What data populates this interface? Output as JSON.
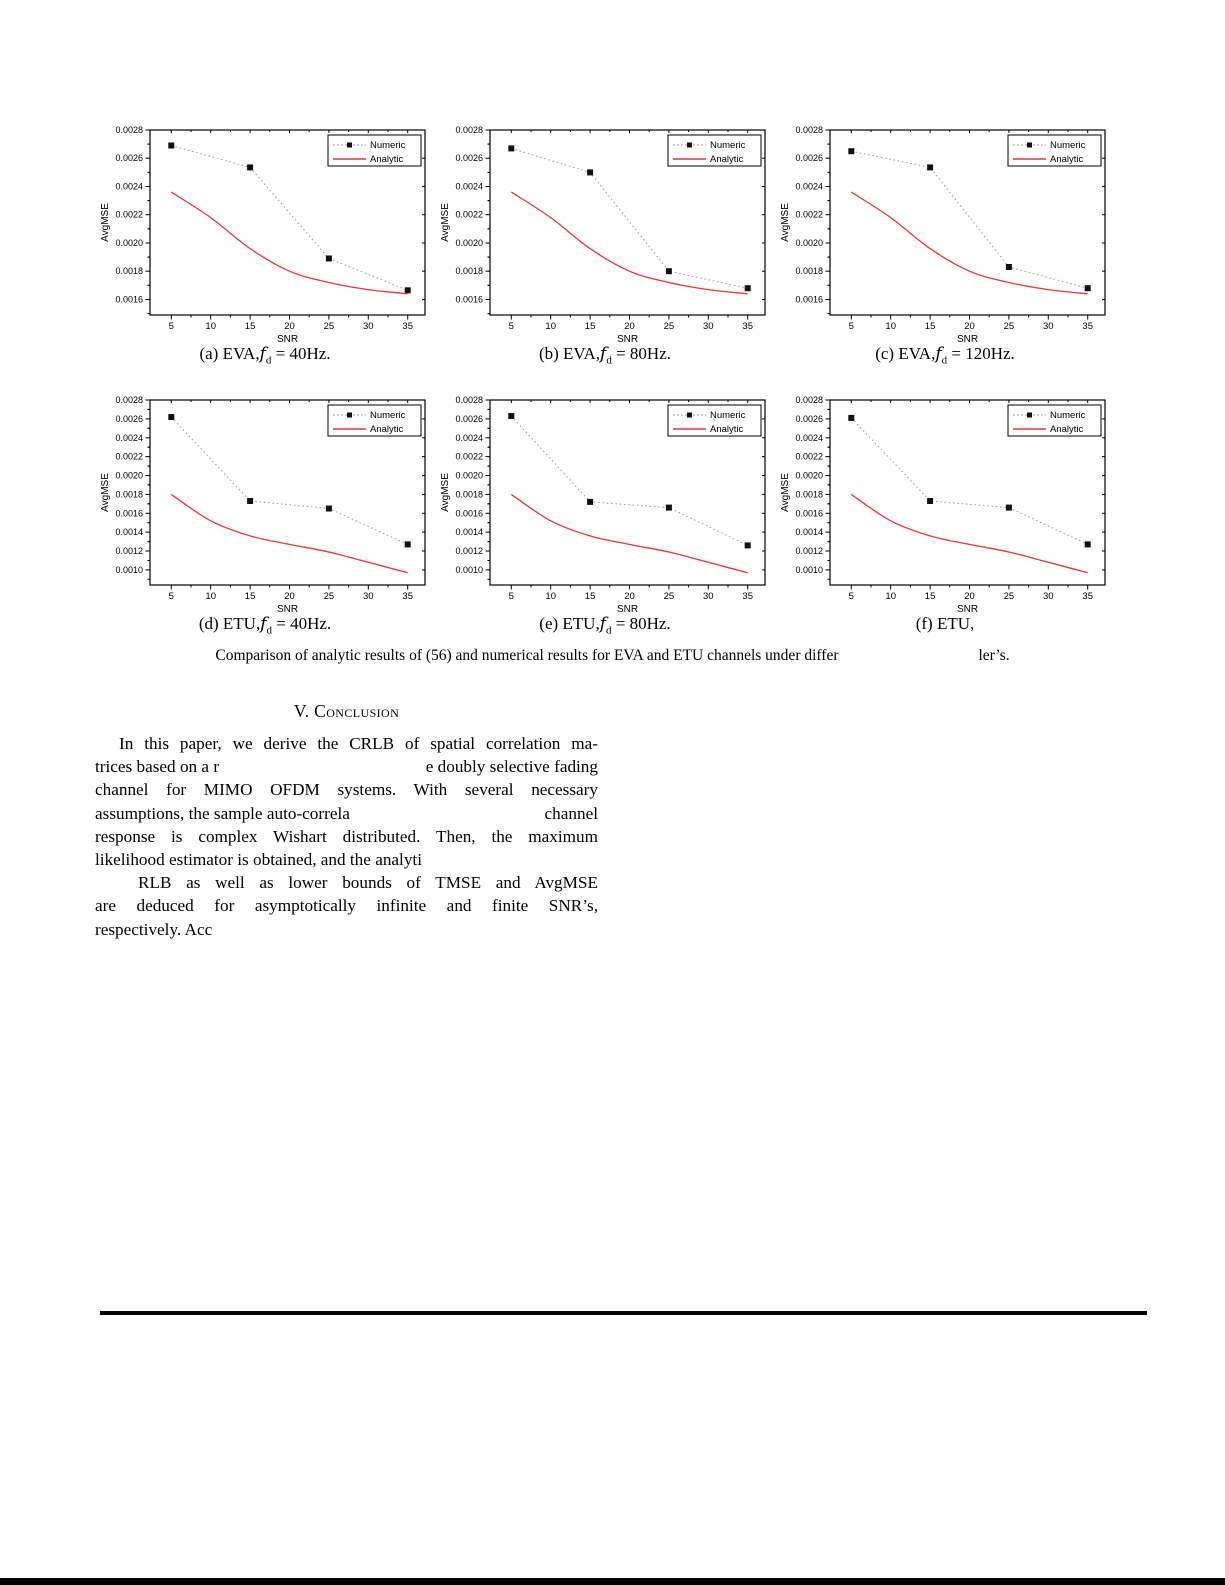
{
  "colors": {
    "frame": "#000000",
    "analytic_red": "#e03a3a",
    "numeric_dot_line": "#999999",
    "numeric_marker": "#111111"
  },
  "figure_caption": {
    "part1": "Comparison of analytic results of (56) and numerical results for EVA and ETU channels under differ",
    "part2": "ler’s."
  },
  "conclusion": {
    "heading": "V. Conclusion",
    "lines": {
      "l0": "In this paper, we derive the CRLB of spatial correlation ma-",
      "l1a": "trices based on a r",
      "l1b": "e doubly selective fading",
      "l2": "channel for MIMO OFDM systems. With several necessary",
      "l3a": "assumptions, the sample auto-correla",
      "l3b": "channel",
      "l4": "response is complex Wishart distributed. Then, the maximum",
      "l5": "likelihood estimator is obtained, and the analyti",
      "l6": "RLB as well as lower bounds of TMSE and AvgMSE",
      "l7": "are deduced for asymptotically infinite and finite SNR’s,",
      "l8": "respectively. Acc"
    }
  },
  "chart_data": [
    {
      "type": "line",
      "caption": {
        "prefix": "(a) EVA,",
        "f": "f",
        "sub": "d",
        "suffix": " = 40Hz."
      },
      "xlabel": "SNR",
      "ylabel": "AvgMSE",
      "xlim": [
        2.3,
        37.2
      ],
      "ylim": [
        0.00149,
        0.0028
      ],
      "xticks": [
        5,
        10,
        15,
        20,
        25,
        30,
        35
      ],
      "yticks": [
        0.0016,
        0.0018,
        0.002,
        0.0022,
        0.0024,
        0.0026,
        0.0028
      ],
      "legend": [
        "Numeric",
        "Analytic"
      ],
      "grid": false,
      "legend_position": "top-right",
      "series": [
        {
          "name": "Numeric",
          "style": "dotted-squares",
          "x": [
            5,
            15,
            25,
            35
          ],
          "y": [
            0.00269,
            0.002535,
            0.00189,
            0.001665
          ]
        },
        {
          "name": "Analytic",
          "style": "solid",
          "x": [
            5,
            10,
            15,
            20,
            25,
            30,
            35
          ],
          "y": [
            0.00236,
            0.00218,
            0.00196,
            0.0018,
            0.00172,
            0.00167,
            0.00164
          ]
        }
      ]
    },
    {
      "type": "line",
      "caption": {
        "prefix": "(b) EVA,",
        "f": "f",
        "sub": "d",
        "suffix": " = 80Hz."
      },
      "xlabel": "SNR",
      "ylabel": "AvgMSE",
      "xlim": [
        2.3,
        37.2
      ],
      "ylim": [
        0.00149,
        0.0028
      ],
      "xticks": [
        5,
        10,
        15,
        20,
        25,
        30,
        35
      ],
      "yticks": [
        0.0016,
        0.0018,
        0.002,
        0.0022,
        0.0024,
        0.0026,
        0.0028
      ],
      "legend": [
        "Numeric",
        "Analytic"
      ],
      "grid": false,
      "legend_position": "top-right",
      "series": [
        {
          "name": "Numeric",
          "style": "dotted-squares",
          "x": [
            5,
            15,
            25,
            35
          ],
          "y": [
            0.00267,
            0.0025,
            0.0018,
            0.00168
          ]
        },
        {
          "name": "Analytic",
          "style": "solid",
          "x": [
            5,
            10,
            15,
            20,
            25,
            30,
            35
          ],
          "y": [
            0.00236,
            0.00218,
            0.00196,
            0.0018,
            0.00172,
            0.00167,
            0.00164
          ]
        }
      ]
    },
    {
      "type": "line",
      "caption": {
        "prefix": "(c) EVA,",
        "f": "f",
        "sub": "d",
        "suffix": " = 120Hz."
      },
      "xlabel": "SNR",
      "ylabel": "AvgMSE",
      "xlim": [
        2.3,
        37.2
      ],
      "ylim": [
        0.00149,
        0.0028
      ],
      "xticks": [
        5,
        10,
        15,
        20,
        25,
        30,
        35
      ],
      "yticks": [
        0.0016,
        0.0018,
        0.002,
        0.0022,
        0.0024,
        0.0026,
        0.0028
      ],
      "legend": [
        "Numeric",
        "Analytic"
      ],
      "grid": false,
      "legend_position": "top-right",
      "series": [
        {
          "name": "Numeric",
          "style": "dotted-squares",
          "x": [
            5,
            15,
            25,
            35
          ],
          "y": [
            0.00265,
            0.002535,
            0.00183,
            0.00168
          ]
        },
        {
          "name": "Analytic",
          "style": "solid",
          "x": [
            5,
            10,
            15,
            20,
            25,
            30,
            35
          ],
          "y": [
            0.00236,
            0.00218,
            0.00196,
            0.0018,
            0.00172,
            0.00167,
            0.00164
          ]
        }
      ]
    },
    {
      "type": "line",
      "caption": {
        "prefix": "(d) ETU,",
        "f": "f",
        "sub": "d",
        "suffix": " = 40Hz."
      },
      "xlabel": "SNR",
      "ylabel": "AvgMSE",
      "xlim": [
        2.3,
        37.2
      ],
      "ylim": [
        0.00084,
        0.0028
      ],
      "xticks": [
        5,
        10,
        15,
        20,
        25,
        30,
        35
      ],
      "yticks": [
        0.001,
        0.0012,
        0.0014,
        0.0016,
        0.0018,
        0.002,
        0.0022,
        0.0024,
        0.0026,
        0.0028
      ],
      "legend": [
        "Numeric",
        "Analytic"
      ],
      "grid": false,
      "legend_position": "top-right",
      "series": [
        {
          "name": "Numeric",
          "style": "dotted-squares",
          "x": [
            5,
            15,
            25,
            35
          ],
          "y": [
            0.00262,
            0.00173,
            0.00165,
            0.00127
          ]
        },
        {
          "name": "Analytic",
          "style": "solid",
          "x": [
            5,
            10,
            15,
            20,
            25,
            30,
            35
          ],
          "y": [
            0.0018,
            0.00152,
            0.00136,
            0.00127,
            0.00119,
            0.00108,
            0.00097
          ]
        }
      ]
    },
    {
      "type": "line",
      "caption": {
        "prefix": "(e) ETU,",
        "f": "f",
        "sub": "d",
        "suffix": " = 80Hz."
      },
      "xlabel": "SNR",
      "ylabel": "AvgMSE",
      "xlim": [
        2.3,
        37.2
      ],
      "ylim": [
        0.00084,
        0.0028
      ],
      "xticks": [
        5,
        10,
        15,
        20,
        25,
        30,
        35
      ],
      "yticks": [
        0.001,
        0.0012,
        0.0014,
        0.0016,
        0.0018,
        0.002,
        0.0022,
        0.0024,
        0.0026,
        0.0028
      ],
      "legend": [
        "Numeric",
        "Analytic"
      ],
      "grid": false,
      "legend_position": "top-right",
      "series": [
        {
          "name": "Numeric",
          "style": "dotted-squares",
          "x": [
            5,
            15,
            25,
            35
          ],
          "y": [
            0.00263,
            0.00172,
            0.00166,
            0.00126
          ]
        },
        {
          "name": "Analytic",
          "style": "solid",
          "x": [
            5,
            10,
            15,
            20,
            25,
            30,
            35
          ],
          "y": [
            0.0018,
            0.00152,
            0.00136,
            0.00127,
            0.00119,
            0.00108,
            0.00097
          ]
        }
      ]
    },
    {
      "type": "line",
      "caption": {
        "prefix": "(f) ETU,",
        "f": "",
        "sub": "",
        "suffix": ""
      },
      "xlabel": "SNR",
      "ylabel": "AvgMSE",
      "xlim": [
        2.3,
        37.2
      ],
      "ylim": [
        0.00084,
        0.0028
      ],
      "xticks": [
        5,
        10,
        15,
        20,
        25,
        30,
        35
      ],
      "yticks": [
        0.001,
        0.0012,
        0.0014,
        0.0016,
        0.0018,
        0.002,
        0.0022,
        0.0024,
        0.0026,
        0.0028
      ],
      "legend": [
        "Numeric",
        "Analytic"
      ],
      "grid": false,
      "legend_position": "top-right",
      "series": [
        {
          "name": "Numeric",
          "style": "dotted-squares",
          "x": [
            5,
            15,
            25,
            35
          ],
          "y": [
            0.00261,
            0.00173,
            0.00166,
            0.00127
          ]
        },
        {
          "name": "Analytic",
          "style": "solid",
          "x": [
            5,
            10,
            15,
            20,
            25,
            30,
            35
          ],
          "y": [
            0.0018,
            0.00152,
            0.00136,
            0.00127,
            0.00119,
            0.00108,
            0.00097
          ]
        }
      ]
    }
  ]
}
